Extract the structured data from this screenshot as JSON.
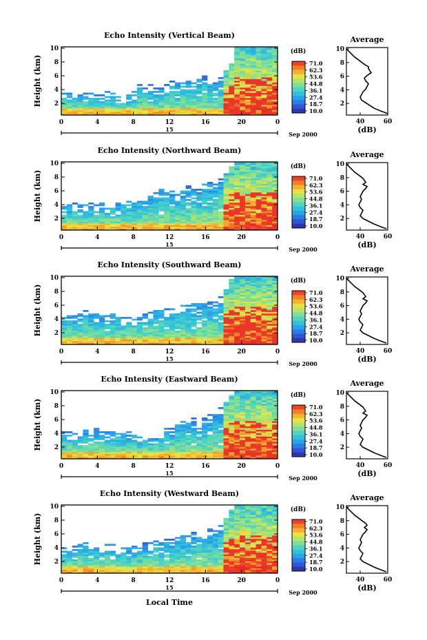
{
  "common": {
    "ylabel": "Height (km)",
    "xlabel": "Local Time",
    "x_ticks": [
      "0",
      "4",
      "8",
      "12",
      "16",
      "20",
      "0"
    ],
    "date_marker": "15",
    "month_label": "Sep 2000",
    "colorbar_unit": "(dB)",
    "colorbar_labels": [
      "71.0",
      "62.3",
      "53.6",
      "44.8",
      "36.1",
      "27.4",
      "18.7",
      "10.0"
    ],
    "average_title": "Average",
    "average_xlabel": "(dB)",
    "average_x_ticks": [
      "40",
      "60"
    ],
    "y_ticks": [
      "2",
      "4",
      "6",
      "8",
      "10"
    ]
  },
  "chart_data": [
    {
      "type": "heatmap",
      "title": "Echo Intensity (Vertical Beam)",
      "xlabel": "",
      "ylabel": "Height (km)",
      "xlim_hours": [
        0,
        24
      ],
      "ylim_km": [
        0.3,
        10.2
      ],
      "color_range_db": [
        10.0,
        71.0
      ],
      "cloud_top_km": [
        3.8,
        3.6,
        3.7,
        3.5,
        3.4,
        3.5,
        3.3,
        3.2,
        3.6,
        3.5,
        3.0,
        2.8,
        3.2,
        3.6,
        4.8,
        4.4,
        4.6,
        4.3,
        4.2,
        4.7,
        5.2,
        5.0,
        5.2,
        5.5,
        5.0,
        5.4,
        5.9,
        5.5,
        5.3,
        5.8,
        6.6,
        7.6,
        10.2,
        10.2,
        10.2,
        10.2,
        10.2,
        10.2,
        10.2,
        10.2
      ],
      "average_profile": {
        "x_db": [
          30,
          32,
          34,
          36,
          38,
          40,
          42,
          44,
          46,
          46,
          47,
          48,
          45,
          43,
          44,
          46,
          45,
          44,
          42,
          41,
          40,
          41,
          44,
          47,
          50,
          55,
          60
        ],
        "y_km": [
          10.0,
          9.6,
          9.2,
          8.8,
          8.5,
          8.2,
          7.9,
          7.6,
          7.4,
          7.1,
          6.8,
          6.5,
          6.1,
          5.7,
          5.3,
          4.9,
          4.5,
          4.1,
          3.7,
          3.3,
          2.9,
          2.5,
          2.1,
          1.7,
          1.3,
          0.9,
          0.5
        ],
        "xlim": [
          30,
          60
        ],
        "ylim": [
          0.3,
          10.2
        ]
      }
    },
    {
      "type": "heatmap",
      "title": "Echo Intensity (Northward Beam)",
      "xlabel": "",
      "ylabel": "Height (km)",
      "xlim_hours": [
        0,
        24
      ],
      "ylim_km": [
        0.3,
        10.2
      ],
      "color_range_db": [
        10.0,
        71.0
      ],
      "cloud_top_km": [
        4.2,
        4.0,
        4.1,
        3.9,
        4.0,
        4.3,
        4.1,
        4.2,
        4.0,
        4.4,
        4.1,
        4.3,
        4.5,
        4.6,
        4.8,
        5.0,
        5.6,
        5.8,
        6.2,
        6.5,
        5.9,
        5.7,
        6.4,
        6.6,
        6.8,
        6.5,
        6.9,
        7.2,
        7.0,
        7.8,
        8.5,
        9.4,
        10.2,
        10.2,
        10.2,
        10.2,
        10.2,
        10.2,
        10.2,
        10.2
      ],
      "average_profile": {
        "x_db": [
          30,
          32,
          34,
          36,
          38,
          40,
          42,
          43,
          44,
          42,
          45,
          44,
          42,
          41,
          40,
          41,
          40,
          39,
          40,
          42,
          41,
          40,
          42,
          46,
          50,
          55,
          59
        ],
        "y_km": [
          10.0,
          9.6,
          9.2,
          8.8,
          8.5,
          8.2,
          7.9,
          7.6,
          7.3,
          7.0,
          6.7,
          6.4,
          6.0,
          5.6,
          5.2,
          4.8,
          4.4,
          4.0,
          3.6,
          3.2,
          2.8,
          2.4,
          2.0,
          1.6,
          1.2,
          0.8,
          0.5
        ],
        "xlim": [
          30,
          60
        ],
        "ylim": [
          0.3,
          10.2
        ]
      }
    },
    {
      "type": "heatmap",
      "title": "Echo Intensity (Southward Beam)",
      "xlabel": "",
      "ylabel": "Height (km)",
      "xlim_hours": [
        0,
        24
      ],
      "ylim_km": [
        0.3,
        10.2
      ],
      "color_range_db": [
        10.0,
        71.0
      ],
      "cloud_top_km": [
        4.4,
        4.5,
        4.6,
        5.0,
        5.2,
        4.8,
        4.9,
        4.6,
        4.4,
        4.8,
        4.5,
        4.2,
        4.1,
        4.4,
        4.3,
        4.6,
        4.9,
        5.1,
        5.3,
        5.4,
        5.6,
        5.8,
        6.2,
        6.0,
        6.3,
        6.1,
        6.5,
        6.8,
        6.6,
        7.3,
        8.2,
        9.6,
        10.2,
        10.2,
        10.2,
        10.2,
        10.2,
        10.2,
        10.2,
        10.2
      ],
      "average_profile": {
        "x_db": [
          30,
          32,
          34,
          36,
          38,
          40,
          42,
          43,
          44,
          42,
          45,
          44,
          42,
          41,
          40,
          41,
          40,
          39,
          40,
          42,
          41,
          40,
          42,
          46,
          50,
          55,
          59
        ],
        "y_km": [
          10.0,
          9.6,
          9.2,
          8.8,
          8.5,
          8.2,
          7.9,
          7.6,
          7.3,
          7.0,
          6.7,
          6.4,
          6.0,
          5.6,
          5.2,
          4.8,
          4.4,
          4.0,
          3.6,
          3.2,
          2.8,
          2.4,
          2.0,
          1.6,
          1.2,
          0.8,
          0.5
        ],
        "xlim": [
          30,
          60
        ],
        "ylim": [
          0.3,
          10.2
        ]
      }
    },
    {
      "type": "heatmap",
      "title": "Echo Intensity (Eastward Beam)",
      "xlabel": "",
      "ylabel": "Height (km)",
      "xlim_hours": [
        0,
        24
      ],
      "ylim_km": [
        0.3,
        10.2
      ],
      "color_range_db": [
        10.0,
        71.0
      ],
      "cloud_top_km": [
        4.3,
        4.1,
        4.2,
        4.0,
        4.4,
        4.2,
        4.6,
        4.5,
        4.2,
        4.3,
        4.6,
        4.4,
        4.1,
        4.0,
        3.6,
        3.5,
        3.8,
        3.6,
        4.2,
        4.6,
        4.8,
        5.4,
        5.8,
        6.0,
        6.2,
        5.9,
        6.3,
        6.6,
        6.9,
        7.6,
        8.4,
        9.5,
        10.2,
        10.2,
        10.2,
        10.2,
        10.2,
        10.2,
        10.2,
        10.2
      ],
      "average_profile": {
        "x_db": [
          30,
          32,
          34,
          36,
          38,
          40,
          42,
          43,
          44,
          42,
          45,
          44,
          42,
          41,
          40,
          41,
          40,
          39,
          40,
          42,
          41,
          40,
          42,
          46,
          50,
          55,
          59
        ],
        "y_km": [
          10.0,
          9.6,
          9.2,
          8.8,
          8.5,
          8.2,
          7.9,
          7.6,
          7.3,
          7.0,
          6.7,
          6.4,
          6.0,
          5.6,
          5.2,
          4.8,
          4.4,
          4.0,
          3.6,
          3.2,
          2.8,
          2.4,
          2.0,
          1.6,
          1.2,
          0.8,
          0.5
        ],
        "xlim": [
          30,
          60
        ],
        "ylim": [
          0.3,
          10.2
        ]
      }
    },
    {
      "type": "heatmap",
      "title": "Echo Intensity (Westward Beam)",
      "xlabel": "Local Time",
      "ylabel": "Height (km)",
      "xlim_hours": [
        0,
        24
      ],
      "ylim_km": [
        0.3,
        10.2
      ],
      "color_range_db": [
        10.0,
        71.0
      ],
      "cloud_top_km": [
        4.2,
        4.0,
        4.3,
        4.5,
        4.6,
        4.8,
        4.5,
        4.3,
        4.7,
        4.4,
        4.2,
        4.0,
        3.9,
        4.2,
        4.4,
        4.6,
        4.8,
        5.0,
        4.9,
        5.2,
        5.1,
        5.5,
        5.7,
        5.9,
        6.1,
        6.0,
        6.3,
        6.6,
        6.8,
        7.4,
        8.3,
        9.4,
        10.2,
        10.2,
        10.2,
        10.2,
        10.2,
        10.2,
        10.2,
        10.2
      ],
      "average_profile": {
        "x_db": [
          30,
          32,
          34,
          36,
          38,
          40,
          42,
          44,
          45,
          43,
          45,
          44,
          42,
          41,
          40,
          41,
          40,
          39,
          40,
          42,
          41,
          40,
          42,
          46,
          50,
          55,
          59
        ],
        "y_km": [
          10.0,
          9.6,
          9.2,
          8.8,
          8.5,
          8.2,
          7.9,
          7.6,
          7.3,
          7.0,
          6.7,
          6.4,
          6.0,
          5.6,
          5.2,
          4.8,
          4.4,
          4.0,
          3.6,
          3.2,
          2.8,
          2.4,
          2.0,
          1.6,
          1.2,
          0.8,
          0.5
        ],
        "xlim": [
          30,
          60
        ],
        "ylim": [
          0.3,
          10.2
        ]
      }
    }
  ]
}
